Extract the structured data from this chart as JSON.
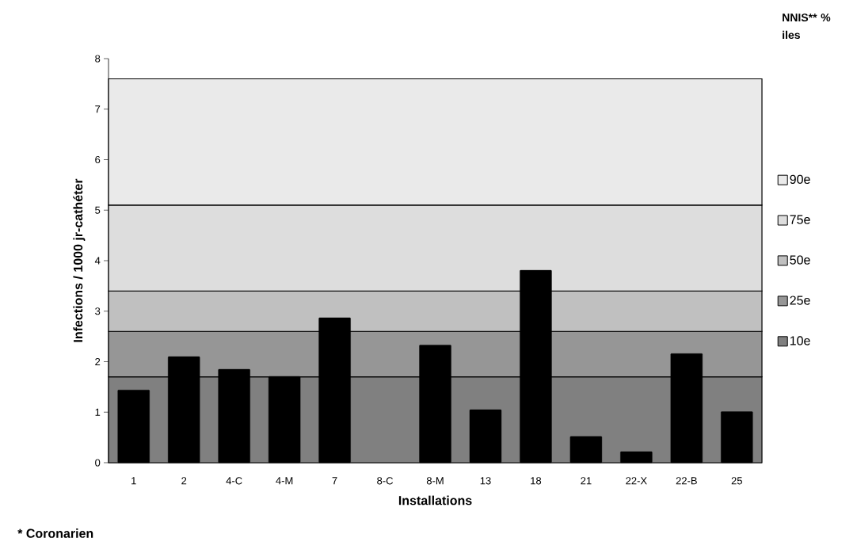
{
  "chart_data": {
    "type": "bar",
    "categories": [
      "1",
      "2",
      "4-C",
      "4-M",
      "7",
      "8-C",
      "8-M",
      "13",
      "18",
      "21",
      "22-X",
      "22-B",
      "25"
    ],
    "series": [
      {
        "color": "#000000",
        "values": [
          1.44,
          2.1,
          1.85,
          1.71,
          2.87,
          null,
          2.33,
          1.05,
          3.81,
          0.52,
          0.22,
          2.16,
          1.01
        ]
      }
    ],
    "xlabel": "Installations",
    "ylabel": "Infections / 1000 jr-cathéter",
    "ylim": [
      0,
      8
    ],
    "yticks": [
      0,
      1,
      2,
      3,
      4,
      5,
      6,
      7,
      8
    ],
    "bands": [
      {
        "axis": "y",
        "from": 0,
        "to": 1.7,
        "label": "10e",
        "color": "#808080"
      },
      {
        "axis": "y",
        "from": 1.7,
        "to": 2.6,
        "label": "25e",
        "color": "#969696"
      },
      {
        "axis": "y",
        "from": 2.6,
        "to": 3.4,
        "label": "50e",
        "color": "#c0c0c0"
      },
      {
        "axis": "y",
        "from": 3.4,
        "to": 5.1,
        "label": "75e",
        "color": "#dddddd"
      },
      {
        "axis": "y",
        "from": 5.1,
        "to": 7.6,
        "label": "90e",
        "color": "#eaeaea"
      }
    ],
    "legend": "right",
    "legend_title": "NNIS** % iles",
    "annotations": [
      "* Coronarien"
    ]
  }
}
